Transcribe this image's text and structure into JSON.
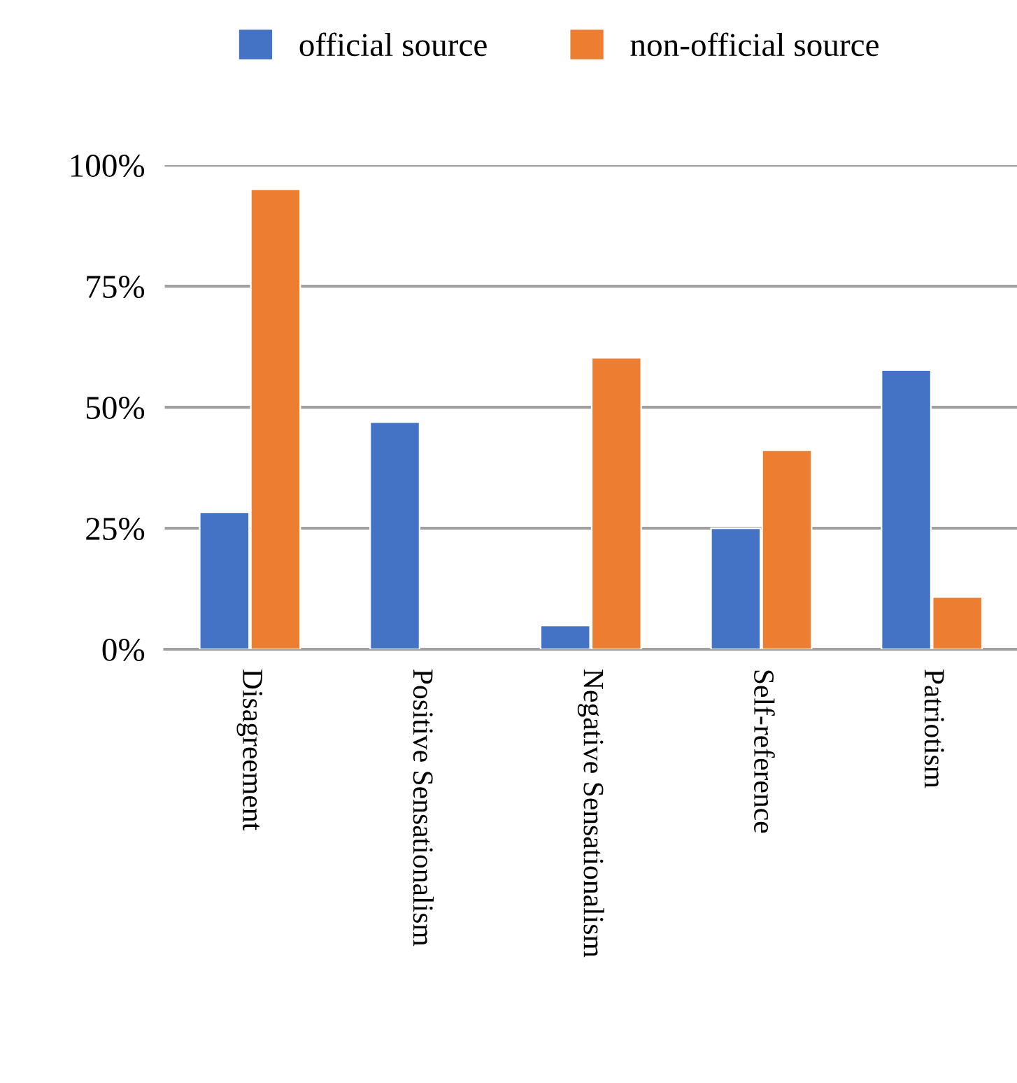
{
  "chart_data": {
    "type": "bar",
    "categories": [
      "Disagreement",
      "Positive Sensationalism",
      "Negative Sensationalism",
      "Self-reference",
      "Patriotism"
    ],
    "series": [
      {
        "name": "official source",
        "color": "#4472c4",
        "values": [
          28.3,
          46.9,
          4.9,
          25.0,
          57.7
        ]
      },
      {
        "name": "non-official source",
        "color": "#ed7d31",
        "values": [
          95.0,
          null,
          60.2,
          41.1,
          10.8
        ]
      }
    ],
    "ylim": [
      0,
      100
    ],
    "yticks": [
      {
        "value": 0,
        "label": "0%"
      },
      {
        "value": 25,
        "label": "25%"
      },
      {
        "value": 50,
        "label": "50%"
      },
      {
        "value": 75,
        "label": "75%"
      },
      {
        "value": 100,
        "label": "100%"
      }
    ],
    "grid": "y",
    "legend": "top"
  }
}
